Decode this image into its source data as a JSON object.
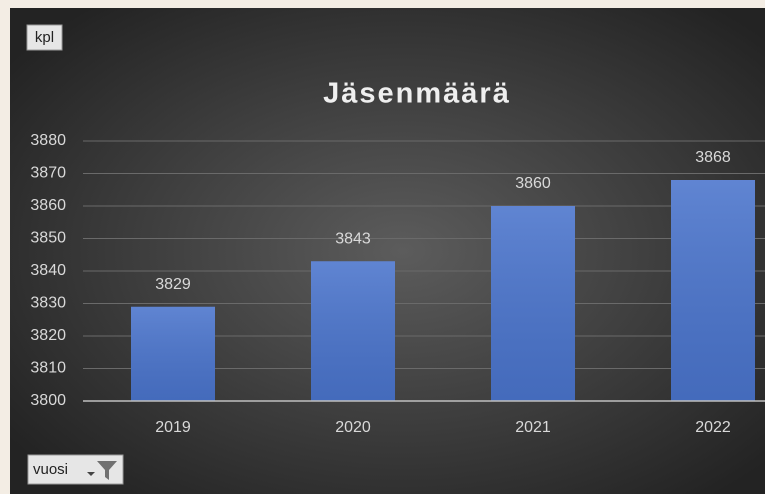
{
  "chart_data": {
    "type": "bar",
    "title": "Jäsenmäärä",
    "value_field_button": "kpl",
    "category_field_button": "vuosi",
    "categories": [
      "2019",
      "2020",
      "2021",
      "2022"
    ],
    "values": [
      3829,
      3843,
      3860,
      3868
    ],
    "color": "#4a74cc",
    "ylim": [
      3800,
      3880
    ],
    "yticks": [
      3800,
      3810,
      3820,
      3830,
      3840,
      3850,
      3860,
      3870,
      3880
    ],
    "grid": true
  }
}
